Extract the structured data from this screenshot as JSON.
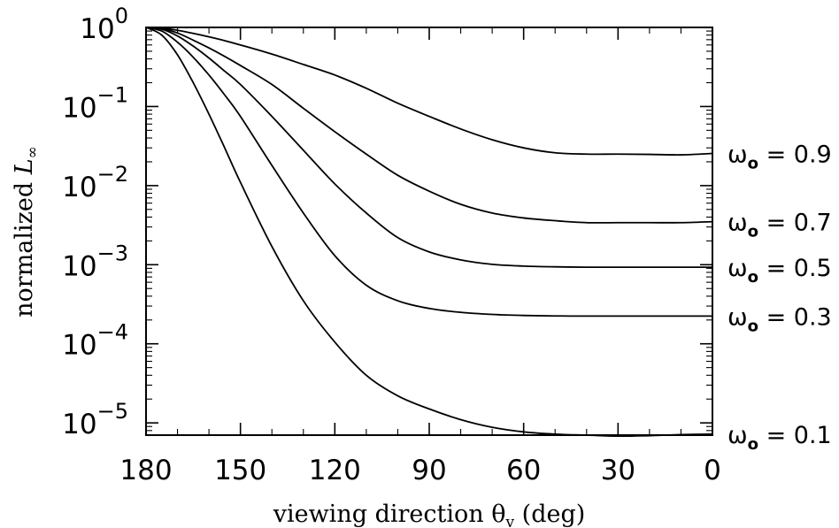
{
  "chart_data": {
    "type": "line",
    "title": "",
    "xlabel": "viewing direction θ",
    "xlabel_sub": "v",
    "xlabel_unit": " (deg)",
    "ylabel": "normalized ",
    "ylabel_var": "L",
    "ylabel_sub": "∞",
    "x_scale": "linear",
    "x_reversed": true,
    "xlim": [
      180,
      0
    ],
    "x_ticks": [
      180,
      150,
      120,
      90,
      60,
      30,
      0
    ],
    "y_scale": "log",
    "ylim": [
      7e-06,
      1
    ],
    "y_ticks": [
      {
        "value": 1,
        "base": "10",
        "exp": "0"
      },
      {
        "value": 0.1,
        "base": "10",
        "exp": "−1"
      },
      {
        "value": 0.01,
        "base": "10",
        "exp": "−2"
      },
      {
        "value": 0.001,
        "base": "10",
        "exp": "−3"
      },
      {
        "value": 0.0001,
        "base": "10",
        "exp": "−4"
      },
      {
        "value": 1e-05,
        "base": "10",
        "exp": "−5"
      }
    ],
    "grid": false,
    "legend": "right, inline labels at curve ends",
    "x": [
      180,
      175,
      170,
      165,
      160,
      155,
      150,
      140,
      130,
      120,
      110,
      100,
      90,
      80,
      70,
      60,
      50,
      40,
      30,
      20,
      10,
      0
    ],
    "series": [
      {
        "name": "ω",
        "sub": "o",
        "eq": " = 0.9",
        "values": [
          1,
          0.98,
          0.92,
          0.84,
          0.76,
          0.68,
          0.6,
          0.46,
          0.34,
          0.25,
          0.17,
          0.11,
          0.075,
          0.052,
          0.038,
          0.03,
          0.026,
          0.025,
          0.025,
          0.0248,
          0.0245,
          0.0255
        ]
      },
      {
        "name": "ω",
        "sub": "o",
        "eq": " = 0.7",
        "values": [
          1,
          0.97,
          0.85,
          0.69,
          0.55,
          0.43,
          0.33,
          0.19,
          0.095,
          0.048,
          0.025,
          0.0135,
          0.0085,
          0.0058,
          0.0045,
          0.0039,
          0.0036,
          0.0034,
          0.0034,
          0.0034,
          0.0034,
          0.0035
        ]
      },
      {
        "name": "ω",
        "sub": "o",
        "eq": " = 0.5",
        "values": [
          1,
          0.95,
          0.78,
          0.58,
          0.41,
          0.28,
          0.19,
          0.075,
          0.028,
          0.0105,
          0.0045,
          0.0022,
          0.00145,
          0.00115,
          0.00101,
          0.00096,
          0.00094,
          0.00093,
          0.00093,
          0.00093,
          0.00093,
          0.00093
        ]
      },
      {
        "name": "ω",
        "sub": "o",
        "eq": " = 0.3",
        "values": [
          1,
          0.9,
          0.65,
          0.42,
          0.25,
          0.14,
          0.075,
          0.018,
          0.0045,
          0.0013,
          0.00055,
          0.00035,
          0.00028,
          0.00025,
          0.000235,
          0.000228,
          0.000225,
          0.000224,
          0.000224,
          0.000224,
          0.000224,
          0.000224
        ]
      },
      {
        "name": "ω",
        "sub": "o",
        "eq": " = 0.1",
        "values": [
          1,
          0.8,
          0.45,
          0.2,
          0.08,
          0.03,
          0.011,
          0.0017,
          0.00035,
          0.000105,
          4e-05,
          2.2e-05,
          1.5e-05,
          1.1e-05,
          8.8e-06,
          7.7e-06,
          7.2e-06,
          7e-06,
          6.8e-06,
          6.9e-06,
          7.1e-06,
          7.2e-06
        ]
      }
    ]
  }
}
